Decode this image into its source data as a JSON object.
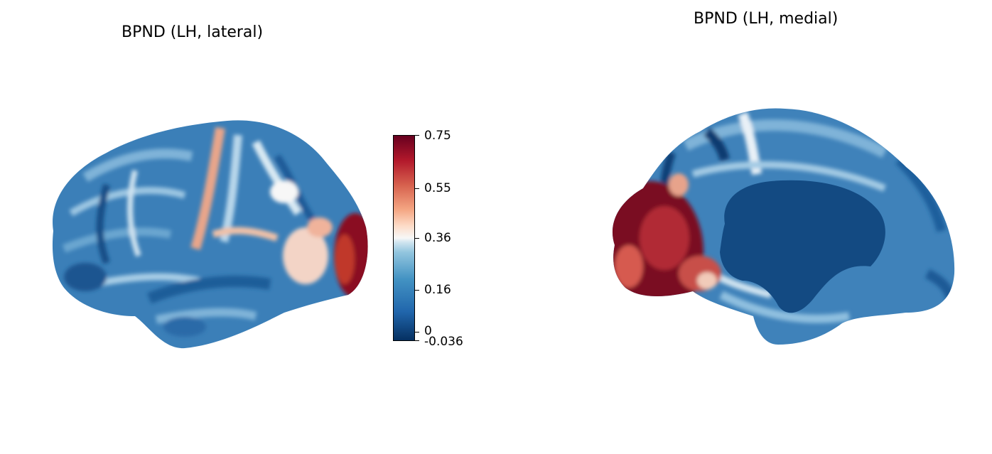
{
  "titles": {
    "lateral": "BPND (LH, lateral)",
    "medial": "BPND (LH, medial)"
  },
  "colorbar": {
    "colormap": "RdBu_r",
    "min": -0.036,
    "max": 0.75,
    "tick_labels": {
      "t075": "0.75",
      "t055": "0.55",
      "t036": "0.36",
      "t016": "0.16",
      "t0": "0",
      "tmin": "-0.036"
    }
  },
  "colors": {
    "dark_red": "#67001f",
    "red": "#b2182b",
    "white": "#f7f7f7",
    "light_blue": "#92c5de",
    "blue": "#2166ac",
    "dark_blue": "#053061",
    "medial_wall": "#134a82"
  }
}
